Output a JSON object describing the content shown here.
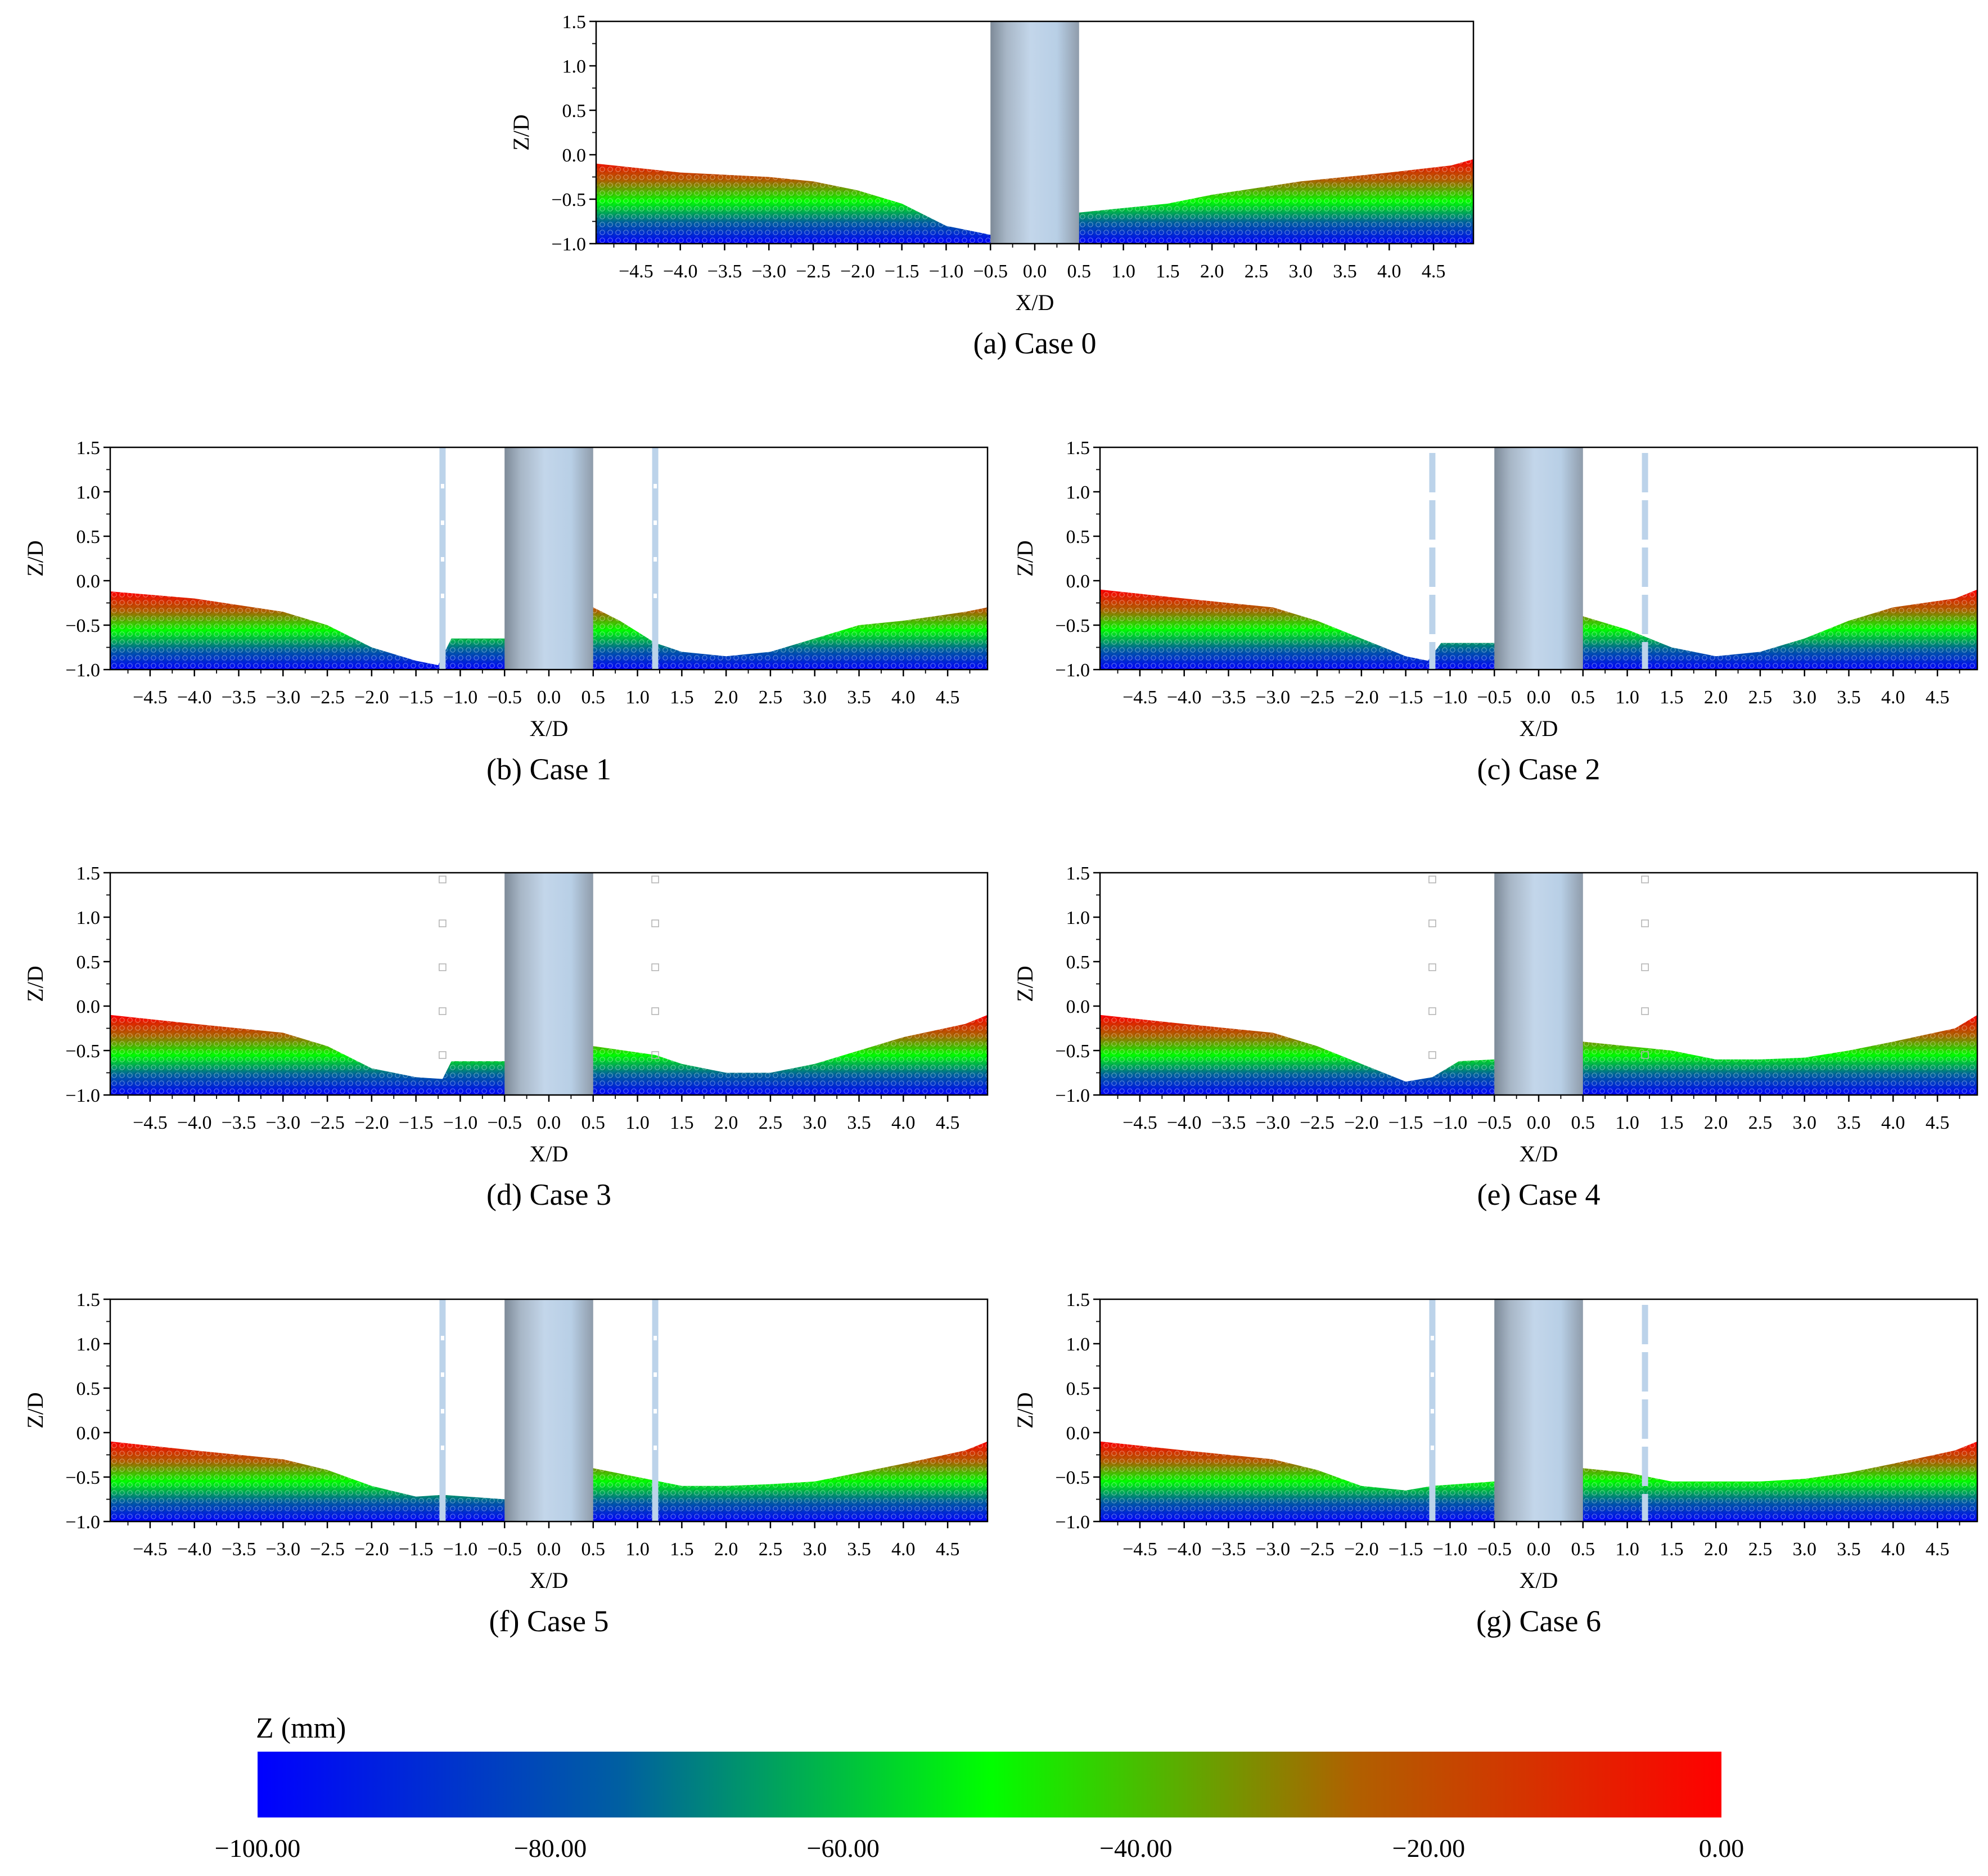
{
  "figure": {
    "colorbar": {
      "title": "Z (mm)",
      "ticks": [
        "−100.00",
        "−80.00",
        "−60.00",
        "−40.00",
        "−20.00",
        "0.00"
      ],
      "range": [
        -100,
        0
      ],
      "colors": [
        "#0000ff",
        "#0060a0",
        "#00ff00",
        "#b06000",
        "#ff0000"
      ]
    },
    "axis_colors": {
      "frame": "#000000",
      "pile": "#b8cfe6",
      "pile_shade": "#7d8a98",
      "rod": "#bcd3ea"
    }
  },
  "chart_data": [
    {
      "type": "scatter",
      "caption": "(a) Case 0",
      "xlabel": "X/D",
      "ylabel": "Z/D",
      "xlim": [
        -4.95,
        4.95
      ],
      "ylim": [
        -1.0,
        1.5
      ],
      "xticks": [
        -4.5,
        -4.0,
        -3.5,
        -3.0,
        -2.5,
        -2.0,
        -1.5,
        -1.0,
        -0.5,
        0.0,
        0.5,
        1.0,
        1.5,
        2.0,
        2.5,
        3.0,
        3.5,
        4.0,
        4.5
      ],
      "xtick_labels": [
        "−4.5",
        "−4.0",
        "−3.5",
        "−3.0",
        "−2.5",
        "−2.0",
        "−1.5",
        "−1.0",
        "−0.5",
        "0.0",
        "0.5",
        "1.0",
        "1.5",
        "2.0",
        "2.5",
        "3.0",
        "3.5",
        "4.0",
        "4.5"
      ],
      "yticks": [
        1.5,
        1.0,
        0.5,
        0.0,
        -0.5,
        -1.0
      ],
      "ytick_labels": [
        "1.5",
        "1.0",
        "0.5",
        "0.0",
        "−0.5",
        "−1.0"
      ],
      "pile": [
        -0.5,
        0.5
      ],
      "rods": [],
      "bed_profile": {
        "x": [
          -4.95,
          -4.0,
          -3.0,
          -2.5,
          -2.0,
          -1.5,
          -1.0,
          -0.5,
          0.5,
          1.0,
          1.5,
          2.0,
          3.0,
          4.0,
          4.7,
          4.95
        ],
        "z": [
          -0.1,
          -0.2,
          -0.25,
          -0.3,
          -0.4,
          -0.55,
          -0.8,
          -0.9,
          -0.65,
          -0.6,
          -0.55,
          -0.45,
          -0.3,
          -0.2,
          -0.12,
          -0.05
        ]
      }
    },
    {
      "type": "scatter",
      "caption": "(b) Case 1",
      "xlabel": "X/D",
      "ylabel": "Z/D",
      "xlim": [
        -4.95,
        4.95
      ],
      "ylim": [
        -1.0,
        1.5
      ],
      "xticks": [
        -4.5,
        -4.0,
        -3.5,
        -3.0,
        -2.5,
        -2.0,
        -1.5,
        -1.0,
        -0.5,
        0.0,
        0.5,
        1.0,
        1.5,
        2.0,
        2.5,
        3.0,
        3.5,
        4.0,
        4.5
      ],
      "xtick_labels": [
        "−4.5",
        "−4.0",
        "−3.5",
        "−3.0",
        "−2.5",
        "−2.0",
        "−1.5",
        "−1.0",
        "−0.5",
        "0.0",
        "0.5",
        "1.0",
        "1.5",
        "2.0",
        "2.5",
        "3.0",
        "3.5",
        "4.0",
        "4.5"
      ],
      "yticks": [
        1.5,
        1.0,
        0.5,
        0.0,
        -0.5,
        -1.0
      ],
      "ytick_labels": [
        "1.5",
        "1.0",
        "0.5",
        "0.0",
        "−0.5",
        "−1.0"
      ],
      "pile": [
        -0.5,
        0.5
      ],
      "rods": [
        {
          "x": -1.2,
          "style": "solid-dots"
        },
        {
          "x": 1.2,
          "style": "solid-dots"
        }
      ],
      "bed_profile": {
        "x": [
          -4.95,
          -4.0,
          -3.0,
          -2.5,
          -2.0,
          -1.5,
          -1.25,
          -1.1,
          -0.5,
          0.5,
          0.8,
          1.2,
          1.5,
          2.0,
          2.5,
          3.0,
          3.5,
          4.0,
          4.7,
          4.95
        ],
        "z": [
          -0.12,
          -0.2,
          -0.35,
          -0.5,
          -0.75,
          -0.9,
          -0.95,
          -0.65,
          -0.65,
          -0.3,
          -0.45,
          -0.7,
          -0.8,
          -0.85,
          -0.8,
          -0.65,
          -0.5,
          -0.45,
          -0.35,
          -0.3
        ]
      }
    },
    {
      "type": "scatter",
      "caption": "(c) Case 2",
      "xlabel": "X/D",
      "ylabel": "Z/D",
      "xlim": [
        -4.95,
        4.95
      ],
      "ylim": [
        -1.0,
        1.5
      ],
      "xticks": [
        -4.5,
        -4.0,
        -3.5,
        -3.0,
        -2.5,
        -2.0,
        -1.5,
        -1.0,
        -0.5,
        0.0,
        0.5,
        1.0,
        1.5,
        2.0,
        2.5,
        3.0,
        3.5,
        4.0,
        4.5
      ],
      "xtick_labels": [
        "−4.5",
        "−4.0",
        "−3.5",
        "−3.0",
        "−2.5",
        "−2.0",
        "−1.5",
        "−1.0",
        "−0.5",
        "0.0",
        "0.5",
        "1.0",
        "1.5",
        "2.0",
        "2.5",
        "3.0",
        "3.5",
        "4.0",
        "4.5"
      ],
      "yticks": [
        1.5,
        1.0,
        0.5,
        0.0,
        -0.5,
        -1.0
      ],
      "ytick_labels": [
        "1.5",
        "1.0",
        "0.5",
        "0.0",
        "−0.5",
        "−1.0"
      ],
      "pile": [
        -0.5,
        0.5
      ],
      "rods": [
        {
          "x": -1.2,
          "style": "dashed"
        },
        {
          "x": 1.2,
          "style": "dashed"
        }
      ],
      "bed_profile": {
        "x": [
          -4.95,
          -4.0,
          -3.0,
          -2.5,
          -2.0,
          -1.5,
          -1.25,
          -1.1,
          -0.5,
          0.5,
          1.0,
          1.5,
          2.0,
          2.5,
          3.0,
          3.5,
          4.0,
          4.7,
          4.95
        ],
        "z": [
          -0.1,
          -0.2,
          -0.3,
          -0.45,
          -0.65,
          -0.85,
          -0.9,
          -0.7,
          -0.7,
          -0.4,
          -0.55,
          -0.75,
          -0.85,
          -0.8,
          -0.65,
          -0.45,
          -0.3,
          -0.2,
          -0.1
        ]
      }
    },
    {
      "type": "scatter",
      "caption": "(d) Case 3",
      "xlabel": "X/D",
      "ylabel": "Z/D",
      "xlim": [
        -4.95,
        4.95
      ],
      "ylim": [
        -1.0,
        1.5
      ],
      "xticks": [
        -4.5,
        -4.0,
        -3.5,
        -3.0,
        -2.5,
        -2.0,
        -1.5,
        -1.0,
        -0.5,
        0.0,
        0.5,
        1.0,
        1.5,
        2.0,
        2.5,
        3.0,
        3.5,
        4.0,
        4.5
      ],
      "xtick_labels": [
        "−4.5",
        "−4.0",
        "−3.5",
        "−3.0",
        "−2.5",
        "−2.0",
        "−1.5",
        "−1.0",
        "−0.5",
        "0.0",
        "0.5",
        "1.0",
        "1.5",
        "2.0",
        "2.5",
        "3.0",
        "3.5",
        "4.0",
        "4.5"
      ],
      "yticks": [
        1.5,
        1.0,
        0.5,
        0.0,
        -0.5,
        -1.0
      ],
      "ytick_labels": [
        "1.5",
        "1.0",
        "0.5",
        "0.0",
        "−0.5",
        "−1.0"
      ],
      "pile": [
        -0.5,
        0.5
      ],
      "rods": [
        {
          "x": -1.2,
          "style": "sparse"
        },
        {
          "x": 1.2,
          "style": "sparse"
        }
      ],
      "bed_profile": {
        "x": [
          -4.95,
          -4.0,
          -3.0,
          -2.5,
          -2.0,
          -1.5,
          -1.2,
          -1.1,
          -0.5,
          0.5,
          1.2,
          1.5,
          2.0,
          2.5,
          3.0,
          3.5,
          4.0,
          4.7,
          4.95
        ],
        "z": [
          -0.1,
          -0.2,
          -0.3,
          -0.45,
          -0.7,
          -0.8,
          -0.82,
          -0.62,
          -0.62,
          -0.45,
          -0.55,
          -0.65,
          -0.75,
          -0.75,
          -0.65,
          -0.5,
          -0.35,
          -0.2,
          -0.1
        ]
      }
    },
    {
      "type": "scatter",
      "caption": "(e) Case 4",
      "xlabel": "X/D",
      "ylabel": "Z/D",
      "xlim": [
        -4.95,
        4.95
      ],
      "ylim": [
        -1.0,
        1.5
      ],
      "xticks": [
        -4.5,
        -4.0,
        -3.5,
        -3.0,
        -2.5,
        -2.0,
        -1.5,
        -1.0,
        -0.5,
        0.0,
        0.5,
        1.0,
        1.5,
        2.0,
        2.5,
        3.0,
        3.5,
        4.0,
        4.5
      ],
      "xtick_labels": [
        "−4.5",
        "−4.0",
        "−3.5",
        "−3.0",
        "−2.5",
        "−2.0",
        "−1.5",
        "−1.0",
        "−0.5",
        "0.0",
        "0.5",
        "1.0",
        "1.5",
        "2.0",
        "2.5",
        "3.0",
        "3.5",
        "4.0",
        "4.5"
      ],
      "yticks": [
        1.5,
        1.0,
        0.5,
        0.0,
        -0.5,
        -1.0
      ],
      "ytick_labels": [
        "1.5",
        "1.0",
        "0.5",
        "0.0",
        "−0.5",
        "−1.0"
      ],
      "pile": [
        -0.5,
        0.5
      ],
      "rods": [
        {
          "x": -1.2,
          "style": "sparse"
        },
        {
          "x": 1.2,
          "style": "sparse"
        }
      ],
      "bed_profile": {
        "x": [
          -4.95,
          -4.0,
          -3.0,
          -2.5,
          -2.0,
          -1.5,
          -1.2,
          -0.9,
          -0.5,
          0.5,
          1.5,
          2.0,
          2.5,
          3.0,
          3.5,
          4.0,
          4.7,
          4.95
        ],
        "z": [
          -0.1,
          -0.2,
          -0.3,
          -0.45,
          -0.65,
          -0.85,
          -0.8,
          -0.62,
          -0.6,
          -0.4,
          -0.5,
          -0.6,
          -0.6,
          -0.58,
          -0.5,
          -0.4,
          -0.25,
          -0.1
        ]
      }
    },
    {
      "type": "scatter",
      "caption": "(f) Case 5",
      "xlabel": "X/D",
      "ylabel": "Z/D",
      "xlim": [
        -4.95,
        4.95
      ],
      "ylim": [
        -1.0,
        1.5
      ],
      "xticks": [
        -4.5,
        -4.0,
        -3.5,
        -3.0,
        -2.5,
        -2.0,
        -1.5,
        -1.0,
        -0.5,
        0.0,
        0.5,
        1.0,
        1.5,
        2.0,
        2.5,
        3.0,
        3.5,
        4.0,
        4.5
      ],
      "xtick_labels": [
        "−4.5",
        "−4.0",
        "−3.5",
        "−3.0",
        "−2.5",
        "−2.0",
        "−1.5",
        "−1.0",
        "−0.5",
        "0.0",
        "0.5",
        "1.0",
        "1.5",
        "2.0",
        "2.5",
        "3.0",
        "3.5",
        "4.0",
        "4.5"
      ],
      "yticks": [
        1.5,
        1.0,
        0.5,
        0.0,
        -0.5,
        -1.0
      ],
      "ytick_labels": [
        "1.5",
        "1.0",
        "0.5",
        "0.0",
        "−0.5",
        "−1.0"
      ],
      "pile": [
        -0.5,
        0.5
      ],
      "rods": [
        {
          "x": -1.2,
          "style": "solid-dots"
        },
        {
          "x": 1.2,
          "style": "solid-dots"
        }
      ],
      "bed_profile": {
        "x": [
          -4.95,
          -4.0,
          -3.0,
          -2.5,
          -2.0,
          -1.5,
          -1.2,
          -0.5,
          0.5,
          1.0,
          1.5,
          2.0,
          2.5,
          3.0,
          3.5,
          4.0,
          4.7,
          4.95
        ],
        "z": [
          -0.1,
          -0.2,
          -0.3,
          -0.42,
          -0.6,
          -0.72,
          -0.7,
          -0.75,
          -0.4,
          -0.5,
          -0.6,
          -0.6,
          -0.58,
          -0.55,
          -0.45,
          -0.35,
          -0.2,
          -0.1
        ]
      }
    },
    {
      "type": "scatter",
      "caption": "(g) Case 6",
      "xlabel": "X/D",
      "ylabel": "Z/D",
      "xlim": [
        -4.95,
        4.95
      ],
      "ylim": [
        -1.0,
        1.5
      ],
      "xticks": [
        -4.5,
        -4.0,
        -3.5,
        -3.0,
        -2.5,
        -2.0,
        -1.5,
        -1.0,
        -0.5,
        0.0,
        0.5,
        1.0,
        1.5,
        2.0,
        2.5,
        3.0,
        3.5,
        4.0,
        4.5
      ],
      "xtick_labels": [
        "−4.5",
        "−4.0",
        "−3.5",
        "−3.0",
        "−2.5",
        "−2.0",
        "−1.5",
        "−1.0",
        "−0.5",
        "0.0",
        "0.5",
        "1.0",
        "1.5",
        "2.0",
        "2.5",
        "3.0",
        "3.5",
        "4.0",
        "4.5"
      ],
      "yticks": [
        1.5,
        1.0,
        0.5,
        0.0,
        -0.5,
        -1.0
      ],
      "ytick_labels": [
        "1.5",
        "1.0",
        "0.5",
        "0.0",
        "−0.5",
        "−1.0"
      ],
      "pile": [
        -0.5,
        0.5
      ],
      "rods": [
        {
          "x": -1.2,
          "style": "solid-dots"
        },
        {
          "x": 1.2,
          "style": "dashed"
        }
      ],
      "bed_profile": {
        "x": [
          -4.95,
          -4.0,
          -3.0,
          -2.5,
          -2.0,
          -1.5,
          -1.2,
          -0.5,
          0.5,
          1.0,
          1.5,
          2.0,
          2.5,
          3.0,
          3.5,
          4.0,
          4.7,
          4.95
        ],
        "z": [
          -0.1,
          -0.2,
          -0.3,
          -0.42,
          -0.6,
          -0.65,
          -0.6,
          -0.55,
          -0.4,
          -0.45,
          -0.55,
          -0.55,
          -0.55,
          -0.52,
          -0.45,
          -0.35,
          -0.2,
          -0.1
        ]
      }
    }
  ]
}
